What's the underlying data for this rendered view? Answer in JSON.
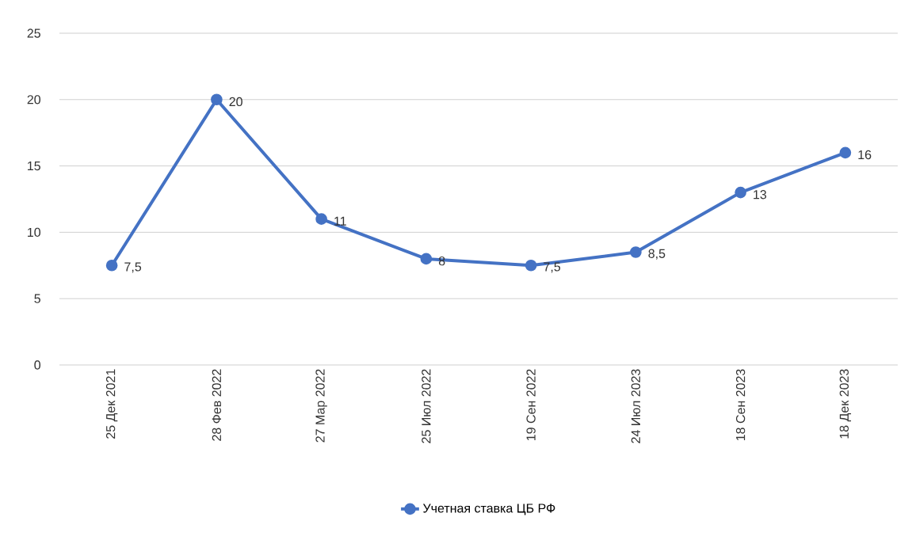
{
  "chart_data": {
    "type": "line",
    "categories": [
      "25 Дек 2021",
      "28 Фев 2022",
      "27 Мар 2022",
      "25 Июл 2022",
      "19 Сен 2022",
      "24 Июл 2023",
      "18 Сен 2023",
      "18 Дек 2023"
    ],
    "series": [
      {
        "name": "Учетная ставка ЦБ РФ",
        "color": "#4472c4",
        "values": [
          7.5,
          20,
          11,
          8,
          7.5,
          8.5,
          13,
          16
        ],
        "value_labels": [
          "7,5",
          "20",
          "11",
          "8",
          "7,5",
          "8,5",
          "13",
          "16"
        ]
      }
    ],
    "ylim": [
      0,
      25
    ],
    "yticks": [
      0,
      5,
      10,
      15,
      20,
      25
    ],
    "grid": "y",
    "legend": "bottom",
    "marker": "circle",
    "line_style": "solid"
  }
}
